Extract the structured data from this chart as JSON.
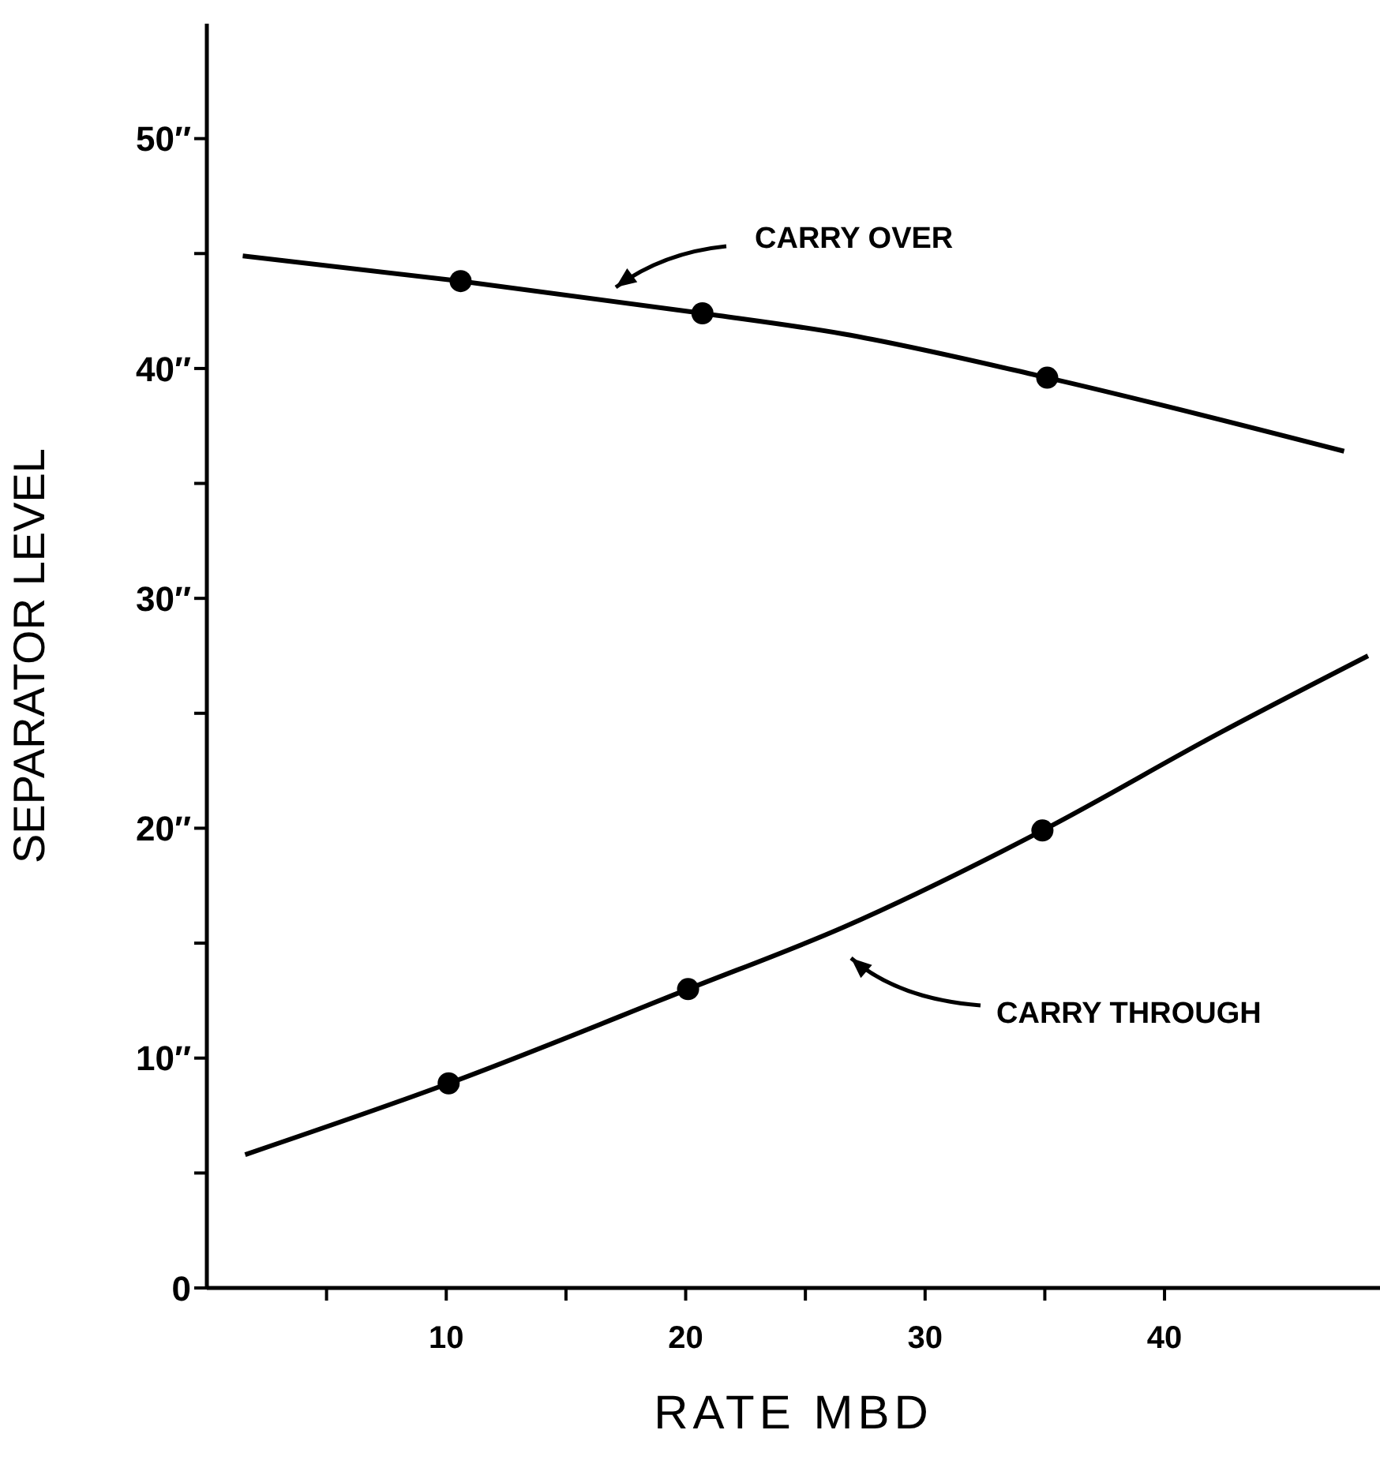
{
  "chart_data": {
    "type": "line",
    "xlabel": "RATE MBD",
    "ylabel": "SEPARATOR LEVEL",
    "xlim": [
      0,
      49
    ],
    "ylim": [
      0,
      55
    ],
    "xticks": [
      {
        "value": 5,
        "label": null
      },
      10,
      {
        "value": 15,
        "label": null
      },
      20,
      {
        "value": 25,
        "label": null
      },
      30,
      {
        "value": 35,
        "label": null
      },
      40
    ],
    "yticks": [
      0,
      {
        "value": 5,
        "label": null
      },
      {
        "value": 10,
        "label": "10″"
      },
      {
        "value": 15,
        "label": null
      },
      {
        "value": 20,
        "label": "20″"
      },
      {
        "value": 25,
        "label": null
      },
      {
        "value": 30,
        "label": "30″"
      },
      {
        "value": 35,
        "label": null
      },
      {
        "value": 40,
        "label": "40″"
      },
      {
        "value": 45,
        "label": null
      },
      {
        "value": 50,
        "label": "50″"
      }
    ],
    "series": [
      {
        "color": "#000000",
        "marker": "none",
        "x": [
          1.5,
          10.6,
          20.7,
          26.6,
          35.1,
          47.5
        ],
        "values": [
          44.9,
          43.8,
          42.4,
          41.5,
          39.6,
          36.4
        ]
      },
      {
        "color": "#000000",
        "marker": "none",
        "x": [
          1.6,
          10.1,
          20.1,
          26.6,
          34.9,
          42.4,
          48.5
        ],
        "values": [
          5.8,
          8.9,
          13.0,
          15.7,
          19.9,
          24.2,
          27.5
        ]
      },
      {
        "type": "scatter",
        "color": "#000000",
        "marker": "circle",
        "x": [
          10.6,
          20.7,
          35.1
        ],
        "values": [
          43.8,
          42.4,
          39.6
        ]
      },
      {
        "type": "scatter",
        "color": "#000000",
        "marker": "circle",
        "x": [
          10.1,
          20.1,
          34.9
        ],
        "values": [
          8.9,
          13.0,
          19.9
        ]
      }
    ],
    "annotations": [
      "CARRY OVER",
      "CARRY THROUGH"
    ]
  }
}
